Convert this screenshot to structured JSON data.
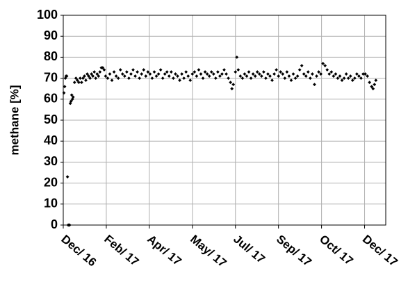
{
  "chart_data": {
    "type": "scatter",
    "y_label": "methane [%]",
    "color": "#000000",
    "grid": true,
    "ylim": [
      0,
      100
    ],
    "yticks": [
      0,
      10,
      20,
      30,
      40,
      50,
      60,
      70,
      80,
      90,
      100
    ],
    "xlim": [
      0,
      457
    ],
    "xticks": [
      {
        "value": 0,
        "label": "Dec/ 16"
      },
      {
        "value": 61,
        "label": "Feb/ 17"
      },
      {
        "value": 122,
        "label": "Apr/ 17"
      },
      {
        "value": 183,
        "label": "May/ 17"
      },
      {
        "value": 244,
        "label": "Jul/ 17"
      },
      {
        "value": 305,
        "label": "Sep/ 17"
      },
      {
        "value": 366,
        "label": "Oct/ 17"
      },
      {
        "value": 427,
        "label": "Dec/ 17"
      }
    ],
    "x": [
      1,
      2,
      3,
      4,
      5,
      6,
      7,
      8,
      9,
      10,
      11,
      12,
      13,
      14,
      16,
      18,
      20,
      22,
      24,
      26,
      28,
      30,
      32,
      34,
      36,
      38,
      40,
      42,
      44,
      46,
      48,
      50,
      52,
      54,
      56,
      58,
      60,
      63,
      66,
      69,
      72,
      75,
      78,
      81,
      84,
      87,
      90,
      93,
      96,
      99,
      102,
      105,
      108,
      111,
      114,
      117,
      120,
      123,
      126,
      129,
      132,
      135,
      138,
      141,
      144,
      147,
      150,
      153,
      156,
      159,
      162,
      165,
      168,
      171,
      174,
      177,
      180,
      183,
      186,
      189,
      192,
      195,
      198,
      201,
      204,
      207,
      210,
      213,
      216,
      219,
      222,
      225,
      228,
      231,
      234,
      237,
      239,
      241,
      244,
      246,
      248,
      251,
      254,
      257,
      260,
      263,
      266,
      269,
      272,
      275,
      278,
      281,
      284,
      287,
      290,
      293,
      296,
      299,
      302,
      305,
      308,
      311,
      314,
      317,
      320,
      323,
      326,
      329,
      332,
      335,
      338,
      341,
      344,
      347,
      350,
      353,
      356,
      359,
      362,
      365,
      368,
      371,
      374,
      377,
      380,
      383,
      386,
      389,
      392,
      395,
      398,
      401,
      404,
      407,
      410,
      413,
      416,
      419,
      422,
      425,
      428,
      431,
      434,
      437,
      439,
      441,
      443
    ],
    "values": [
      63,
      66,
      70,
      71,
      71,
      23,
      0,
      0,
      0,
      58,
      59,
      62,
      60,
      61,
      68,
      70,
      69,
      68,
      70,
      68,
      70,
      71,
      69,
      72,
      71,
      70,
      72,
      71,
      73,
      70,
      72,
      71,
      73,
      75,
      75,
      74,
      71,
      70,
      72,
      69,
      73,
      71,
      70,
      74,
      72,
      71,
      73,
      70,
      72,
      74,
      71,
      73,
      70,
      72,
      74,
      71,
      73,
      72,
      70,
      73,
      71,
      72,
      74,
      70,
      72,
      73,
      71,
      73,
      70,
      72,
      71,
      69,
      72,
      70,
      73,
      71,
      69,
      72,
      73,
      71,
      74,
      72,
      70,
      73,
      72,
      71,
      73,
      72,
      70,
      73,
      71,
      72,
      74,
      72,
      70,
      68,
      65,
      67,
      73,
      80,
      74,
      71,
      70,
      72,
      71,
      73,
      70,
      72,
      71,
      73,
      72,
      71,
      73,
      70,
      72,
      71,
      69,
      72,
      74,
      71,
      73,
      72,
      70,
      73,
      71,
      69,
      72,
      70,
      71,
      74,
      76,
      72,
      71,
      73,
      70,
      72,
      67,
      71,
      73,
      72,
      77,
      76,
      74,
      72,
      73,
      71,
      72,
      70,
      71,
      69,
      70,
      72,
      70,
      71,
      69,
      70,
      72,
      71,
      70,
      72,
      72,
      71,
      68,
      66,
      65,
      67,
      69
    ]
  }
}
